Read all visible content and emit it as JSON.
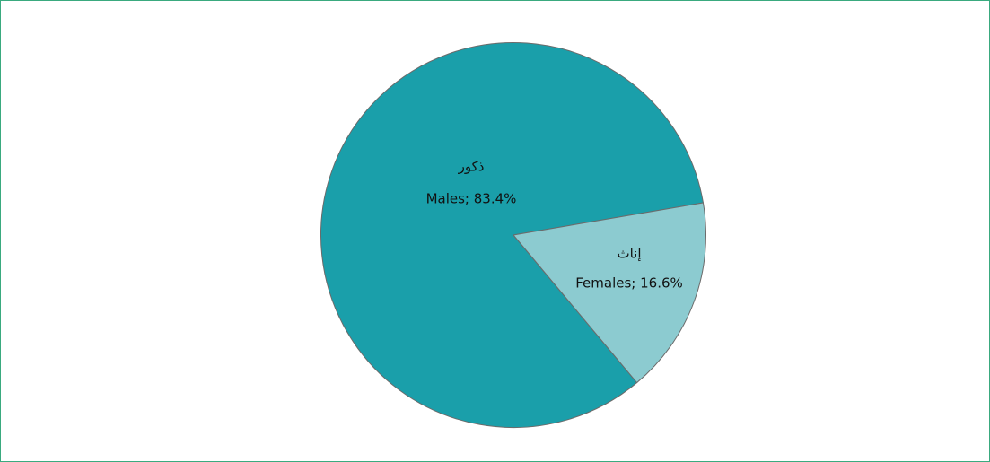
{
  "chart_data": {
    "type": "pie",
    "categories": [
      "ذكور",
      "إناث"
    ],
    "values": [
      83.4,
      16.6
    ],
    "value_labels": [
      "Males; 83.4%",
      "Females; 16.6%"
    ],
    "colors": [
      "#1a9faa",
      "#8ccbd0"
    ]
  }
}
